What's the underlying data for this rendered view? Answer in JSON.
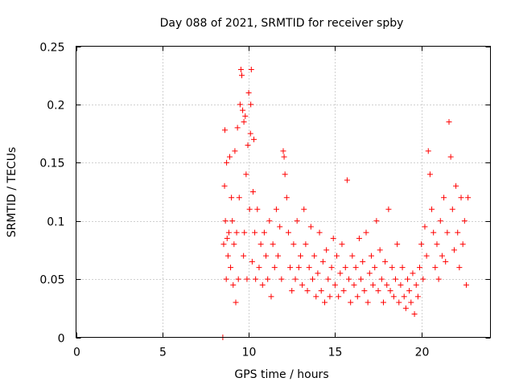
{
  "chart_data": {
    "type": "scatter",
    "title": "Day 088 of 2021, SRMTID for receiver spby",
    "xlabel": "GPS time / hours",
    "ylabel": "SRMTID / TECUs",
    "xlim": [
      0,
      24
    ],
    "ylim": [
      0,
      0.25
    ],
    "xticks": [
      0,
      5,
      10,
      15,
      20
    ],
    "xtick_labels": [
      "0",
      "5",
      "10",
      "15",
      "20"
    ],
    "yticks": [
      0,
      0.05,
      0.1,
      0.15,
      0.2,
      0.25
    ],
    "ytick_labels": [
      "0",
      "0.05",
      "0.1",
      "0.15",
      "0.2",
      "0.25"
    ],
    "grid": true,
    "marker_color": "#ff0000",
    "series": [
      {
        "name": "SRMTID",
        "marker": "plus",
        "x": [
          8.5,
          8.55,
          8.6,
          8.62,
          8.65,
          8.7,
          8.72,
          8.75,
          8.8,
          8.85,
          8.9,
          8.95,
          9.0,
          9.05,
          9.1,
          9.15,
          9.2,
          9.25,
          9.3,
          9.35,
          9.4,
          9.45,
          9.5,
          9.55,
          9.6,
          9.65,
          9.7,
          9.72,
          9.75,
          9.8,
          9.85,
          9.9,
          9.95,
          10.0,
          10.05,
          10.1,
          10.12,
          10.15,
          10.2,
          10.25,
          10.3,
          10.35,
          10.4,
          10.5,
          10.6,
          10.7,
          10.8,
          10.9,
          11.0,
          11.1,
          11.2,
          11.3,
          11.4,
          11.5,
          11.6,
          11.7,
          11.8,
          11.9,
          12.0,
          12.05,
          12.1,
          12.2,
          12.3,
          12.4,
          12.5,
          12.6,
          12.7,
          12.8,
          12.9,
          13.0,
          13.1,
          13.2,
          13.3,
          13.4,
          13.5,
          13.6,
          13.7,
          13.8,
          13.9,
          14.0,
          14.1,
          14.2,
          14.3,
          14.4,
          14.5,
          14.6,
          14.7,
          14.8,
          14.9,
          15.0,
          15.1,
          15.2,
          15.3,
          15.4,
          15.5,
          15.6,
          15.7,
          15.8,
          15.9,
          16.0,
          16.1,
          16.2,
          16.3,
          16.4,
          16.5,
          16.6,
          16.7,
          16.8,
          16.9,
          17.0,
          17.1,
          17.2,
          17.3,
          17.4,
          17.5,
          17.6,
          17.7,
          17.8,
          17.9,
          18.0,
          18.1,
          18.2,
          18.3,
          18.4,
          18.5,
          18.6,
          18.7,
          18.8,
          18.9,
          19.0,
          19.1,
          19.2,
          19.3,
          19.4,
          19.5,
          19.6,
          19.7,
          19.8,
          19.9,
          20.0,
          20.1,
          20.2,
          20.3,
          20.4,
          20.5,
          20.6,
          20.7,
          20.8,
          20.9,
          21.0,
          21.1,
          21.2,
          21.3,
          21.4,
          21.5,
          21.6,
          21.7,
          21.8,
          21.9,
          22.0,
          22.1,
          22.2,
          22.3,
          22.4,
          22.5,
          22.6,
          22.7
        ],
        "y": [
          0.0,
          0.08,
          0.13,
          0.178,
          0.1,
          0.05,
          0.15,
          0.085,
          0.07,
          0.09,
          0.155,
          0.06,
          0.12,
          0.1,
          0.045,
          0.08,
          0.16,
          0.03,
          0.09,
          0.18,
          0.05,
          0.12,
          0.2,
          0.23,
          0.225,
          0.195,
          0.07,
          0.185,
          0.09,
          0.19,
          0.14,
          0.05,
          0.165,
          0.21,
          0.11,
          0.175,
          0.2,
          0.23,
          0.065,
          0.125,
          0.17,
          0.09,
          0.05,
          0.11,
          0.06,
          0.08,
          0.045,
          0.09,
          0.07,
          0.05,
          0.1,
          0.035,
          0.08,
          0.06,
          0.11,
          0.07,
          0.095,
          0.05,
          0.16,
          0.155,
          0.14,
          0.12,
          0.09,
          0.06,
          0.04,
          0.08,
          0.05,
          0.1,
          0.06,
          0.07,
          0.045,
          0.11,
          0.08,
          0.04,
          0.06,
          0.095,
          0.05,
          0.07,
          0.035,
          0.055,
          0.09,
          0.04,
          0.065,
          0.03,
          0.075,
          0.05,
          0.035,
          0.06,
          0.085,
          0.045,
          0.07,
          0.035,
          0.055,
          0.08,
          0.04,
          0.06,
          0.135,
          0.05,
          0.03,
          0.07,
          0.045,
          0.06,
          0.035,
          0.085,
          0.05,
          0.065,
          0.04,
          0.09,
          0.03,
          0.055,
          0.07,
          0.045,
          0.06,
          0.1,
          0.04,
          0.075,
          0.05,
          0.03,
          0.065,
          0.045,
          0.11,
          0.04,
          0.06,
          0.035,
          0.05,
          0.08,
          0.03,
          0.045,
          0.06,
          0.035,
          0.025,
          0.05,
          0.04,
          0.03,
          0.055,
          0.02,
          0.045,
          0.035,
          0.06,
          0.08,
          0.05,
          0.095,
          0.07,
          0.16,
          0.14,
          0.11,
          0.09,
          0.06,
          0.08,
          0.05,
          0.1,
          0.07,
          0.12,
          0.065,
          0.09,
          0.185,
          0.155,
          0.11,
          0.075,
          0.13,
          0.09,
          0.06,
          0.12,
          0.08,
          0.1,
          0.045,
          0.12
        ]
      }
    ]
  }
}
